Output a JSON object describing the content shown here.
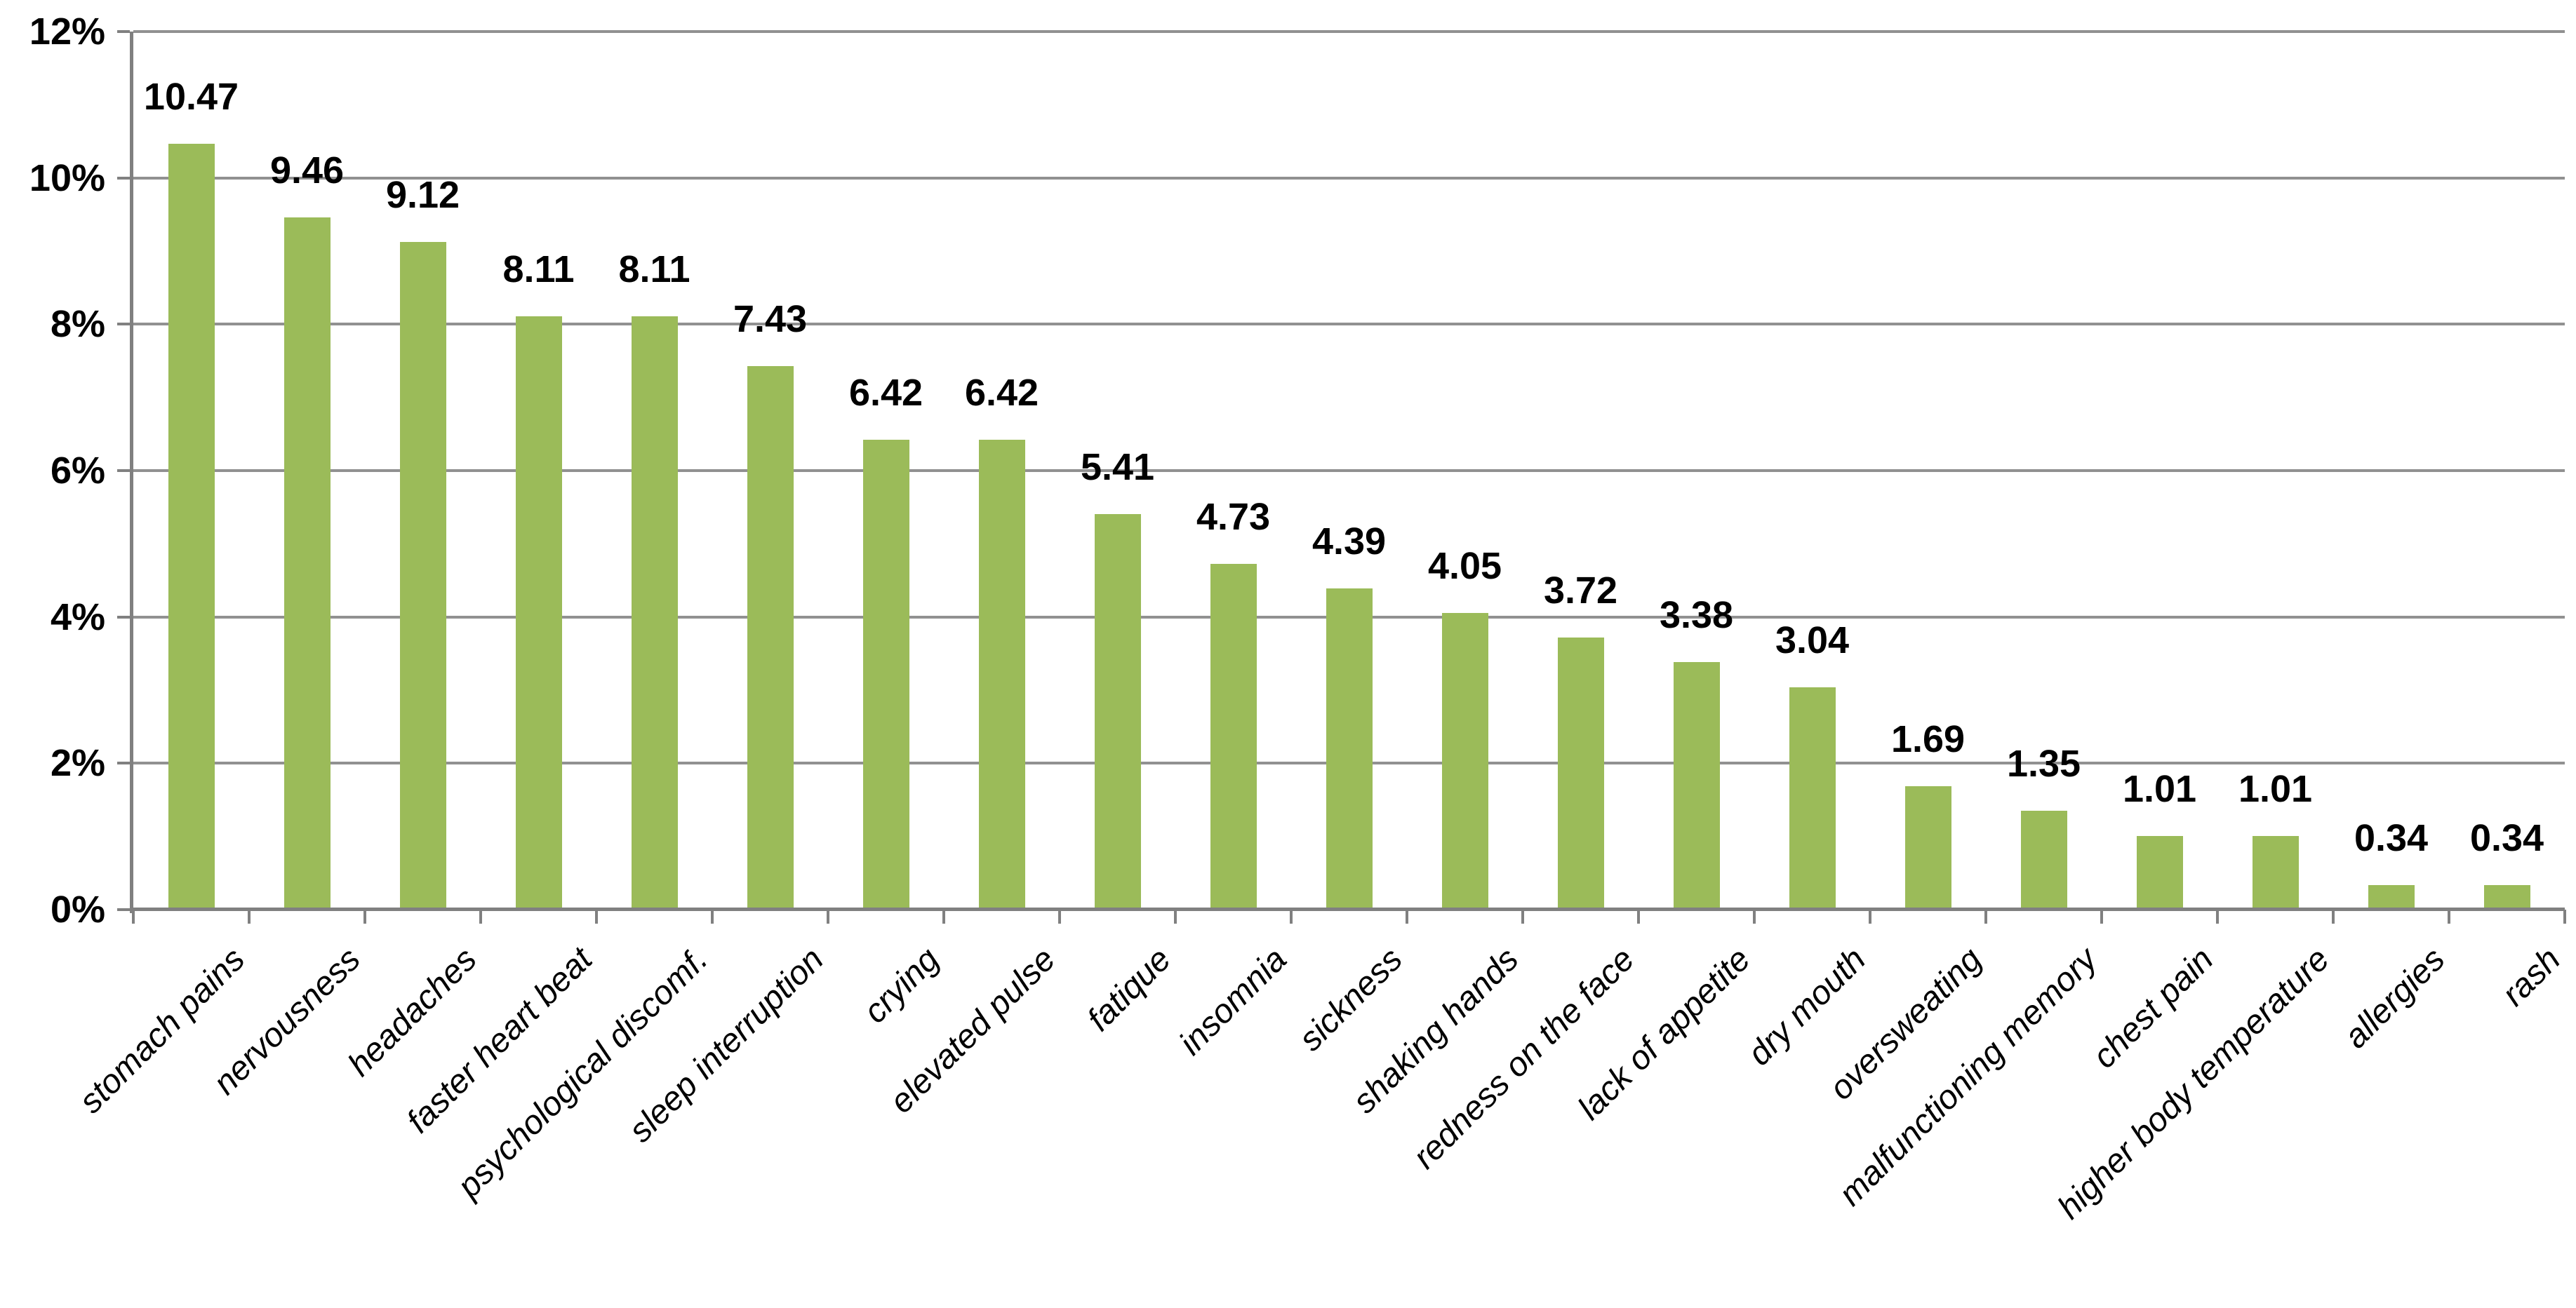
{
  "chart_data": {
    "type": "bar",
    "title": "",
    "xlabel": "",
    "ylabel": "",
    "categories": [
      "stomach pains",
      "nervousness",
      "headaches",
      "faster heart beat",
      "psychological discomf.",
      "sleep interruption",
      "crying",
      "elevated pulse",
      "fatique",
      "insomnia",
      "sickness",
      "shaking hands",
      "redness on the face",
      "lack of appetite",
      "dry mouth",
      "oversweating",
      "malfunctioning memory",
      "chest pain",
      "higher body temperature",
      "allergies",
      "rash"
    ],
    "values": [
      10.47,
      9.46,
      9.12,
      8.11,
      8.11,
      7.43,
      6.42,
      6.42,
      5.41,
      4.73,
      4.39,
      4.05,
      3.72,
      3.38,
      3.04,
      1.69,
      1.35,
      1.01,
      1.01,
      0.34,
      0.34
    ],
    "value_labels": [
      "10.47",
      "9.46",
      "9.12",
      "8.11",
      "8.11",
      "7.43",
      "6.42",
      "6.42",
      "5.41",
      "4.73",
      "4.39",
      "4.05",
      "3.72",
      "3.38",
      "3.04",
      "1.69",
      "1.35",
      "1.01",
      "1.01",
      "0.34",
      "0.34"
    ],
    "ylim": [
      0,
      12
    ],
    "y_ticks": [
      {
        "value": 0,
        "label": "0%"
      },
      {
        "value": 2,
        "label": "2%"
      },
      {
        "value": 4,
        "label": "4%"
      },
      {
        "value": 6,
        "label": "6%"
      },
      {
        "value": 8,
        "label": "8%"
      },
      {
        "value": 10,
        "label": "10%"
      },
      {
        "value": 12,
        "label": "12%"
      }
    ],
    "grid": true,
    "legend": "none",
    "colors": {
      "bar_fill": "#9BBB59",
      "gridline": "#919191",
      "axis_line": "#808080",
      "text": "#000000",
      "background": "#FFFFFF"
    }
  }
}
